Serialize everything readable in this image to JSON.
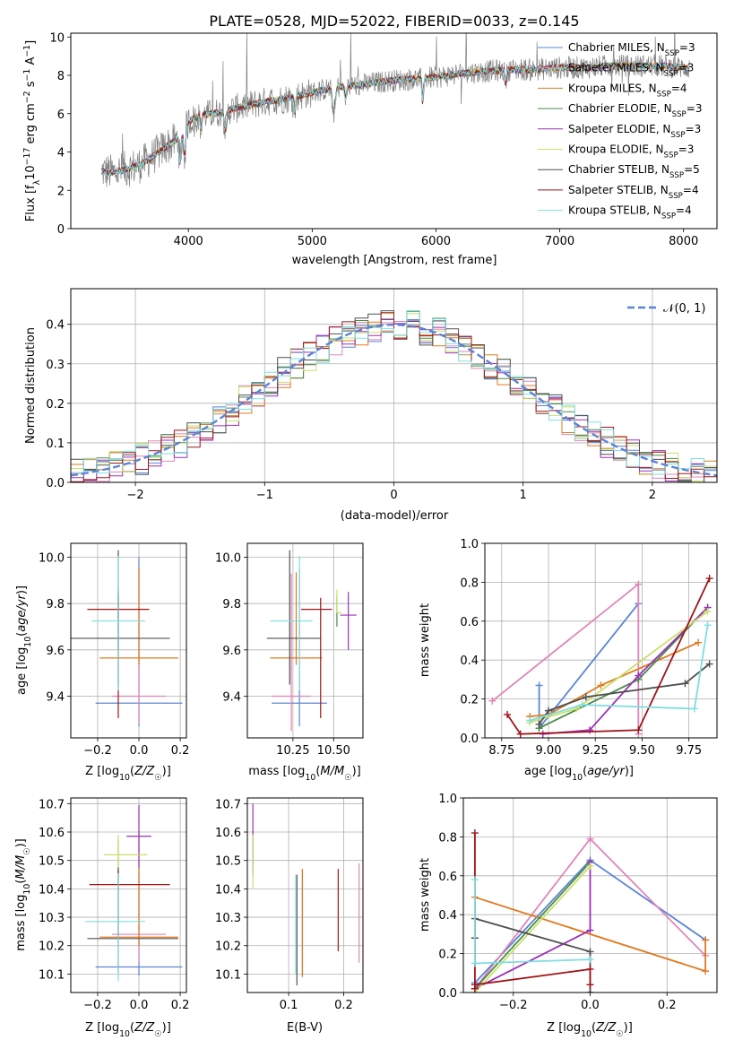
{
  "page_title": "PLATE=0528, MJD=52022, FIBERID=0033, z=0.145",
  "colors": {
    "chabrier_miles": "#5b84d6",
    "salpeter_miles": "#e085b8",
    "kroupa_miles": "#e07a20",
    "chabrier_elodie": "#4a8a4a",
    "salpeter_elodie": "#9a30b5",
    "kroupa_elodie": "#c8e06a",
    "chabrier_stelib": "#505050",
    "salpeter_stelib": "#a01418",
    "kroupa_stelib": "#7fdde0",
    "data": "#808080",
    "normal": "#5b84d6"
  },
  "chart_data": [
    {
      "id": "spectrum",
      "type": "line",
      "title": "PLATE=0528, MJD=52022, FIBERID=0033, z=0.145",
      "xlabel": "wavelength [Angstrom, rest frame]",
      "ylabel": "Flux [f_λ 10⁻¹⁷ erg cm⁻² s⁻¹ A⁻¹]",
      "xlim": [
        3050,
        8270
      ],
      "ylim": [
        0,
        10.2
      ],
      "xticks": [
        4000,
        5000,
        6000,
        7000,
        8000
      ],
      "yticks": [
        0,
        2,
        4,
        6,
        8,
        10
      ],
      "grid": false,
      "legend_position": "top-right",
      "legend": [
        {
          "label": "Chabrier MILES, N_SSP=3",
          "color_key": "chabrier_miles"
        },
        {
          "label": "Salpeter MILES, N_SSP=3",
          "color_key": "salpeter_miles"
        },
        {
          "label": "Kroupa MILES, N_SSP=4",
          "color_key": "kroupa_miles"
        },
        {
          "label": "Chabrier ELODIE, N_SSP=3",
          "color_key": "chabrier_elodie"
        },
        {
          "label": "Salpeter ELODIE, N_SSP=3",
          "color_key": "salpeter_elodie"
        },
        {
          "label": "Kroupa ELODIE, N_SSP=3",
          "color_key": "kroupa_elodie"
        },
        {
          "label": "Chabrier STELIB, N_SSP=5",
          "color_key": "chabrier_stelib"
        },
        {
          "label": "Salpeter STELIB, N_SSP=4",
          "color_key": "salpeter_stelib"
        },
        {
          "label": "Kroupa STELIB, N_SSP=4",
          "color_key": "kroupa_stelib"
        }
      ],
      "continuum": {
        "x": [
          3300,
          3400,
          3500,
          3600,
          3700,
          3800,
          3900,
          4000,
          4100,
          4200,
          4400,
          4600,
          4800,
          5000,
          5200,
          5400,
          5600,
          5800,
          6000,
          6200,
          6400,
          6600,
          6800,
          7000,
          7200,
          7400,
          7600,
          7800,
          8000
        ],
        "y": [
          3.0,
          2.9,
          3.1,
          3.3,
          3.7,
          4.2,
          4.6,
          5.6,
          5.9,
          6.0,
          6.3,
          6.6,
          6.8,
          7.1,
          7.4,
          7.5,
          7.7,
          7.8,
          7.9,
          8.1,
          8.2,
          8.3,
          8.3,
          8.4,
          8.4,
          8.5,
          8.5,
          8.5,
          8.4
        ]
      }
    },
    {
      "id": "residuals",
      "type": "step",
      "xlabel": "(data-model)/error",
      "ylabel": "Normed distribution",
      "xlim": [
        -2.5,
        2.5
      ],
      "ylim": [
        0,
        0.49
      ],
      "xticks": [
        -2,
        -1,
        0,
        1,
        2
      ],
      "yticks": [
        0.0,
        0.1,
        0.2,
        0.3,
        0.4
      ],
      "grid": true,
      "legend_position": "top-right",
      "legend_label": "N(0,1)"
    },
    {
      "id": "age_vs_Z",
      "type": "errorbar",
      "xlabel": "Z [log₁₀(Z/Z☉)]",
      "ylabel": "age  [log₁₀(age/yr)]",
      "xlim": [
        -0.33,
        0.23
      ],
      "ylim": [
        9.22,
        10.06
      ],
      "xticks": [
        -0.2,
        0.0,
        0.2
      ],
      "yticks": [
        9.4,
        9.6,
        9.8,
        10.0
      ],
      "grid": true,
      "points": [
        {
          "color_key": "chabrier_miles",
          "x": 0.0,
          "xerr": [
            0.21,
            0.21
          ],
          "y": 9.37,
          "yerr": [
            0.1,
            0.63
          ]
        },
        {
          "color_key": "salpeter_miles",
          "x": 0.0,
          "xerr": [
            0.13,
            0.13
          ],
          "y": 9.4,
          "yerr": [
            0.12,
            0.55
          ]
        },
        {
          "color_key": "kroupa_miles",
          "x": 0.0,
          "xerr": [
            0.19,
            0.19
          ],
          "y": 9.565,
          "yerr": [
            0.03,
            0.39
          ]
        },
        {
          "color_key": "chabrier_elodie",
          "x": -0.1,
          "xerr": [
            0.0,
            0.0
          ],
          "y": 9.75,
          "yerr": [
            0.02,
            0.11
          ]
        },
        {
          "color_key": "salpeter_elodie",
          "x": -0.1,
          "xerr": [
            0.0,
            0.0
          ],
          "y": 9.75,
          "yerr": [
            0.15,
            0.1
          ]
        },
        {
          "color_key": "kroupa_elodie",
          "x": -0.1,
          "xerr": [
            0.0,
            0.0
          ],
          "y": 9.76,
          "yerr": [
            0.0,
            0.12
          ]
        },
        {
          "color_key": "chabrier_stelib",
          "x": -0.1,
          "xerr": [
            0.25,
            0.25
          ],
          "y": 9.65,
          "yerr": [
            0.2,
            0.38
          ]
        },
        {
          "color_key": "salpeter_stelib",
          "x": -0.1,
          "xerr": [
            0.15,
            0.15
          ],
          "y": 9.775,
          "yerr": [
            0.47,
            0.05
          ]
        },
        {
          "color_key": "kroupa_stelib",
          "x": -0.1,
          "xerr": [
            0.13,
            0.13
          ],
          "y": 9.725,
          "yerr": [
            0.3,
            0.28
          ]
        }
      ]
    },
    {
      "id": "age_vs_mass",
      "type": "errorbar",
      "xlabel": "mass [log₁₀(M/M☉)]",
      "ylabel": "",
      "xlim": [
        9.97,
        10.68
      ],
      "ylim": [
        9.22,
        10.06
      ],
      "xticks": [
        10.25,
        10.5
      ],
      "yticks": [
        9.4,
        9.6,
        9.8,
        10.0
      ],
      "grid": true,
      "points": [
        {
          "color_key": "chabrier_miles",
          "x": 10.29,
          "xerr": [
            0.17,
            0.17
          ],
          "y": 9.37,
          "yerr": [
            0.1,
            0.58
          ]
        },
        {
          "color_key": "salpeter_miles",
          "x": 10.24,
          "xerr": [
            0.12,
            0.12
          ],
          "y": 9.4,
          "yerr": [
            0.15,
            0.53
          ]
        },
        {
          "color_key": "kroupa_miles",
          "x": 10.27,
          "xerr": [
            0.16,
            0.16
          ],
          "y": 9.565,
          "yerr": [
            0.03,
            0.37
          ]
        },
        {
          "color_key": "chabrier_elodie",
          "x": 10.52,
          "xerr": [
            0.0,
            0.0
          ],
          "y": 9.75,
          "yerr": [
            0.05,
            0.08
          ]
        },
        {
          "color_key": "salpeter_elodie",
          "x": 10.59,
          "xerr": [
            0.05,
            0.05
          ],
          "y": 9.75,
          "yerr": [
            0.15,
            0.1
          ]
        },
        {
          "color_key": "kroupa_elodie",
          "x": 10.52,
          "xerr": [
            0.0,
            0.03
          ],
          "y": 9.76,
          "yerr": [
            0.0,
            0.1
          ]
        },
        {
          "color_key": "chabrier_stelib",
          "x": 10.23,
          "xerr": [
            0.14,
            0.19
          ],
          "y": 9.65,
          "yerr": [
            0.2,
            0.38
          ]
        },
        {
          "color_key": "salpeter_stelib",
          "x": 10.42,
          "xerr": [
            0.12,
            0.07
          ],
          "y": 9.775,
          "yerr": [
            0.47,
            0.05
          ]
        },
        {
          "color_key": "kroupa_stelib",
          "x": 10.29,
          "xerr": [
            0.18,
            0.08
          ],
          "y": 9.725,
          "yerr": [
            0.3,
            0.28
          ]
        }
      ]
    },
    {
      "id": "mass_weight_vs_age",
      "type": "line",
      "xlabel": "age  [log₁₀(age/yr)]",
      "ylabel": "mass weight",
      "xlim": [
        8.66,
        9.9
      ],
      "ylim": [
        0,
        1.0
      ],
      "xticks": [
        8.75,
        9.0,
        9.25,
        9.5,
        9.75
      ],
      "yticks": [
        0.0,
        0.2,
        0.4,
        0.6,
        0.8,
        1.0
      ],
      "grid": true,
      "series": [
        {
          "color_key": "chabrier_miles",
          "x": [
            8.95,
            8.95,
            9.48
          ],
          "y": [
            0.27,
            0.05,
            0.69
          ]
        },
        {
          "color_key": "salpeter_miles",
          "x": [
            8.7,
            9.48,
            9.48
          ],
          "y": [
            0.19,
            0.79,
            0.02
          ]
        },
        {
          "color_key": "kroupa_miles",
          "x": [
            8.9,
            9.0,
            9.28,
            9.8
          ],
          "y": [
            0.11,
            0.12,
            0.27,
            0.49
          ]
        },
        {
          "color_key": "chabrier_elodie",
          "x": [
            8.95,
            9.48,
            9.85
          ],
          "y": [
            0.05,
            0.3,
            0.67
          ]
        },
        {
          "color_key": "salpeter_elodie",
          "x": [
            8.97,
            9.22,
            9.48,
            9.85
          ],
          "y": [
            0.02,
            0.04,
            0.32,
            0.67
          ]
        },
        {
          "color_key": "kroupa_elodie",
          "x": [
            8.9,
            9.15,
            9.85
          ],
          "y": [
            0.08,
            0.15,
            0.65
          ]
        },
        {
          "color_key": "chabrier_stelib",
          "x": [
            8.95,
            9.0,
            9.2,
            9.73,
            9.86
          ],
          "y": [
            0.07,
            0.14,
            0.21,
            0.28,
            0.38
          ]
        },
        {
          "color_key": "salpeter_stelib",
          "x": [
            8.78,
            8.85,
            9.48,
            9.86
          ],
          "y": [
            0.12,
            0.02,
            0.04,
            0.82
          ]
        },
        {
          "color_key": "kroupa_stelib",
          "x": [
            8.9,
            9.18,
            9.78,
            9.85
          ],
          "y": [
            0.09,
            0.17,
            0.15,
            0.58
          ]
        }
      ]
    },
    {
      "id": "mass_vs_Z",
      "type": "errorbar",
      "xlabel": "Z [log₁₀(Z/Z☉)]",
      "ylabel": "mass [log₁₀(M/M☉)]",
      "xlim": [
        -0.33,
        0.23
      ],
      "ylim": [
        10.035,
        10.72
      ],
      "xticks": [
        -0.2,
        0.0,
        0.2
      ],
      "yticks": [
        10.1,
        10.2,
        10.3,
        10.4,
        10.5,
        10.6,
        10.7
      ],
      "grid": true,
      "points": [
        {
          "color_key": "chabrier_miles",
          "x": 0.0,
          "xerr": [
            0.21,
            0.21
          ],
          "y": 10.125,
          "yerr": [
            0.03,
            0.35
          ]
        },
        {
          "color_key": "salpeter_miles",
          "x": 0.0,
          "xerr": [
            0.13,
            0.13
          ],
          "y": 10.24,
          "yerr": [
            0.1,
            0.22
          ]
        },
        {
          "color_key": "kroupa_miles",
          "x": 0.0,
          "xerr": [
            0.19,
            0.19
          ],
          "y": 10.23,
          "yerr": [
            0.03,
            0.37
          ]
        },
        {
          "color_key": "chabrier_elodie",
          "x": -0.1,
          "xerr": [
            0.0,
            0.0
          ],
          "y": 10.52,
          "yerr": [
            0.05,
            0.05
          ]
        },
        {
          "color_key": "salpeter_elodie",
          "x": 0.0,
          "xerr": [
            0.06,
            0.06
          ],
          "y": 10.585,
          "yerr": [
            0.11,
            0.11
          ]
        },
        {
          "color_key": "kroupa_elodie",
          "x": -0.1,
          "xerr": [
            0.07,
            0.14
          ],
          "y": 10.52,
          "yerr": [
            0.08,
            0.07
          ]
        },
        {
          "color_key": "chabrier_stelib",
          "x": -0.1,
          "xerr": [
            0.15,
            0.29
          ],
          "y": 10.225,
          "yerr": [
            0.0,
            0.25
          ]
        },
        {
          "color_key": "salpeter_stelib",
          "x": -0.1,
          "xerr": [
            0.14,
            0.25
          ],
          "y": 10.415,
          "yerr": [
            0.31,
            0.05
          ]
        },
        {
          "color_key": "kroupa_stelib",
          "x": -0.1,
          "xerr": [
            0.16,
            0.13
          ],
          "y": 10.285,
          "yerr": [
            0.21,
            0.17
          ]
        }
      ]
    },
    {
      "id": "mass_vs_EBV",
      "type": "errorbar",
      "xlabel": "E(B-V)",
      "ylabel": "",
      "xlim": [
        0.025,
        0.235
      ],
      "ylim": [
        10.035,
        10.72
      ],
      "xticks": [
        0.1,
        0.2
      ],
      "yticks": [
        10.1,
        10.2,
        10.3,
        10.4,
        10.5,
        10.6,
        10.7
      ],
      "grid": true,
      "points": [
        {
          "color_key": "chabrier_miles",
          "x": 0.125,
          "xerr": [
            0.0,
            0.0
          ],
          "y": 10.12,
          "yerr": [
            0.03,
            0.35
          ]
        },
        {
          "color_key": "salpeter_miles",
          "x": 0.228,
          "xerr": [
            0.0,
            0.0
          ],
          "y": 10.24,
          "yerr": [
            0.1,
            0.25
          ]
        },
        {
          "color_key": "kroupa_miles",
          "x": 0.125,
          "xerr": [
            0.0,
            0.0
          ],
          "y": 10.23,
          "yerr": [
            0.14,
            0.24
          ]
        },
        {
          "color_key": "chabrier_elodie",
          "x": 0.035,
          "xerr": [
            0.0,
            0.0
          ],
          "y": 10.52,
          "yerr": [
            0.04,
            0.05
          ]
        },
        {
          "color_key": "salpeter_elodie",
          "x": 0.035,
          "xerr": [
            0.0,
            0.0
          ],
          "y": 10.58,
          "yerr": [
            0.13,
            0.12
          ]
        },
        {
          "color_key": "kroupa_elodie",
          "x": 0.035,
          "xerr": [
            0.0,
            0.0
          ],
          "y": 10.52,
          "yerr": [
            0.12,
            0.07
          ]
        },
        {
          "color_key": "chabrier_stelib",
          "x": 0.115,
          "xerr": [
            0.0,
            0.0
          ],
          "y": 10.22,
          "yerr": [
            0.16,
            0.23
          ]
        },
        {
          "color_key": "salpeter_stelib",
          "x": 0.19,
          "xerr": [
            0.0,
            0.0
          ],
          "y": 10.33,
          "yerr": [
            0.15,
            0.14
          ]
        },
        {
          "color_key": "kroupa_stelib",
          "x": 0.113,
          "xerr": [
            0.0,
            0.0
          ],
          "y": 10.28,
          "yerr": [
            0.18,
            0.17
          ]
        }
      ]
    },
    {
      "id": "mass_weight_vs_Z",
      "type": "line",
      "xlabel": "Z [log₁₀(Z/Z☉)]",
      "ylabel": "mass weight",
      "xlim": [
        -0.33,
        0.33
      ],
      "ylim": [
        0,
        1.0
      ],
      "xticks": [
        -0.2,
        0.0,
        0.2
      ],
      "yticks": [
        0.0,
        0.2,
        0.4,
        0.6,
        0.8,
        1.0
      ],
      "grid": true,
      "series": [
        {
          "color_key": "chabrier_miles",
          "x": [
            -0.3,
            0.0,
            0.3
          ],
          "y": [
            0.05,
            0.68,
            0.27
          ]
        },
        {
          "color_key": "salpeter_miles",
          "x": [
            -0.3,
            0.0,
            0.3
          ],
          "y": [
            0.02,
            0.79,
            0.19
          ]
        },
        {
          "color_key": "kroupa_miles",
          "x": [
            -0.3,
            0.3,
            0.3
          ],
          "y": [
            0.49,
            0.11,
            0.27
          ]
        },
        {
          "color_key": "chabrier_elodie",
          "x": [
            -0.3,
            0.0
          ],
          "y": [
            0.02,
            0.67
          ]
        },
        {
          "color_key": "salpeter_elodie",
          "x": [
            -0.3,
            0.0,
            0.0
          ],
          "y": [
            0.02,
            0.32,
            0.67
          ]
        },
        {
          "color_key": "kroupa_elodie",
          "x": [
            -0.3,
            0.0
          ],
          "y": [
            0.0,
            0.65
          ]
        },
        {
          "color_key": "chabrier_stelib",
          "x": [
            -0.3,
            -0.3,
            0.0,
            0.0
          ],
          "y": [
            0.28,
            0.38,
            0.21,
            0.0
          ]
        },
        {
          "color_key": "salpeter_stelib",
          "x": [
            -0.3,
            -0.3,
            -0.3,
            0.0,
            0.0
          ],
          "y": [
            0.82,
            0.02,
            0.04,
            0.12,
            0.04
          ]
        },
        {
          "color_key": "kroupa_stelib",
          "x": [
            -0.3,
            -0.3,
            0.0
          ],
          "y": [
            0.58,
            0.15,
            0.17
          ]
        }
      ]
    }
  ]
}
